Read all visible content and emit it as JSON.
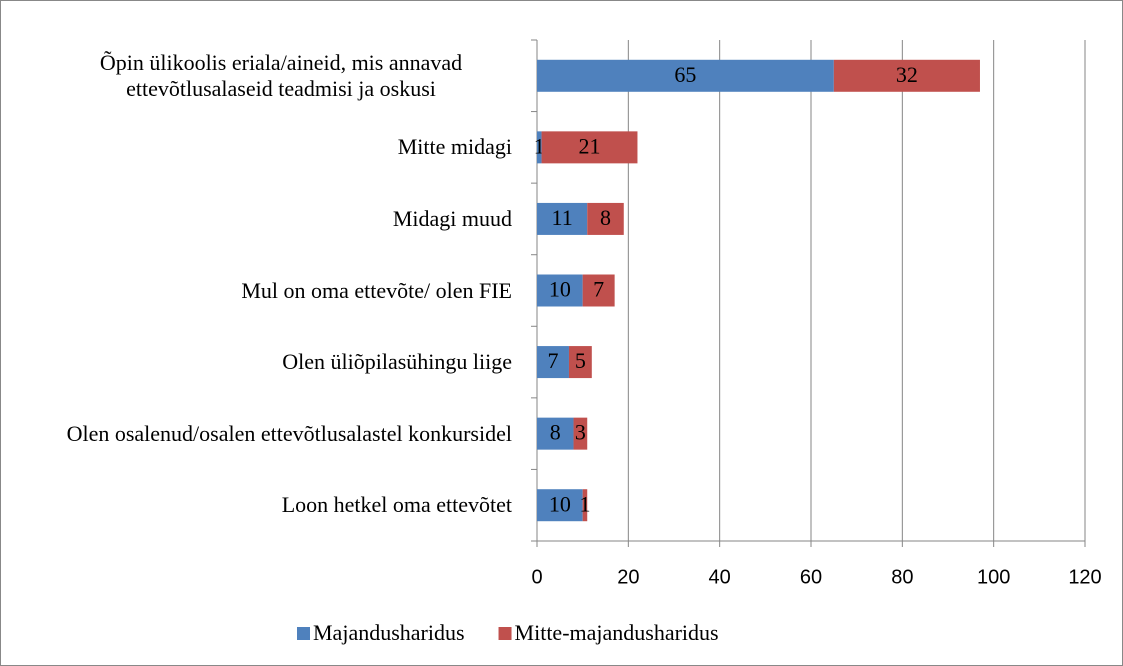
{
  "chart_data": {
    "type": "stacked_barh",
    "categories": [
      "Õpin ülikoolis eriala/aineid, mis annavad ettevõtlusalaseid teadmisi ja oskusi",
      "Mitte midagi",
      "Midagi muud",
      "Mul on oma ettevõte/ olen FIE",
      "Olen üliõpilasühingu liige",
      "Olen osalenud/osalen ettevõtlusalastel konkursidel",
      "Loon hetkel oma ettevõtet"
    ],
    "series": [
      {
        "name": "Majandusharidus",
        "color": "#4f81bd",
        "values": [
          65,
          1,
          11,
          10,
          7,
          8,
          10
        ]
      },
      {
        "name": "Mitte-majandusharidus",
        "color": "#c0504d",
        "values": [
          32,
          21,
          8,
          7,
          5,
          3,
          1
        ]
      }
    ],
    "xlim": [
      0,
      120
    ],
    "xticks": [
      0,
      20,
      40,
      60,
      80,
      100,
      120
    ],
    "grid": true,
    "legend": "bottom"
  }
}
